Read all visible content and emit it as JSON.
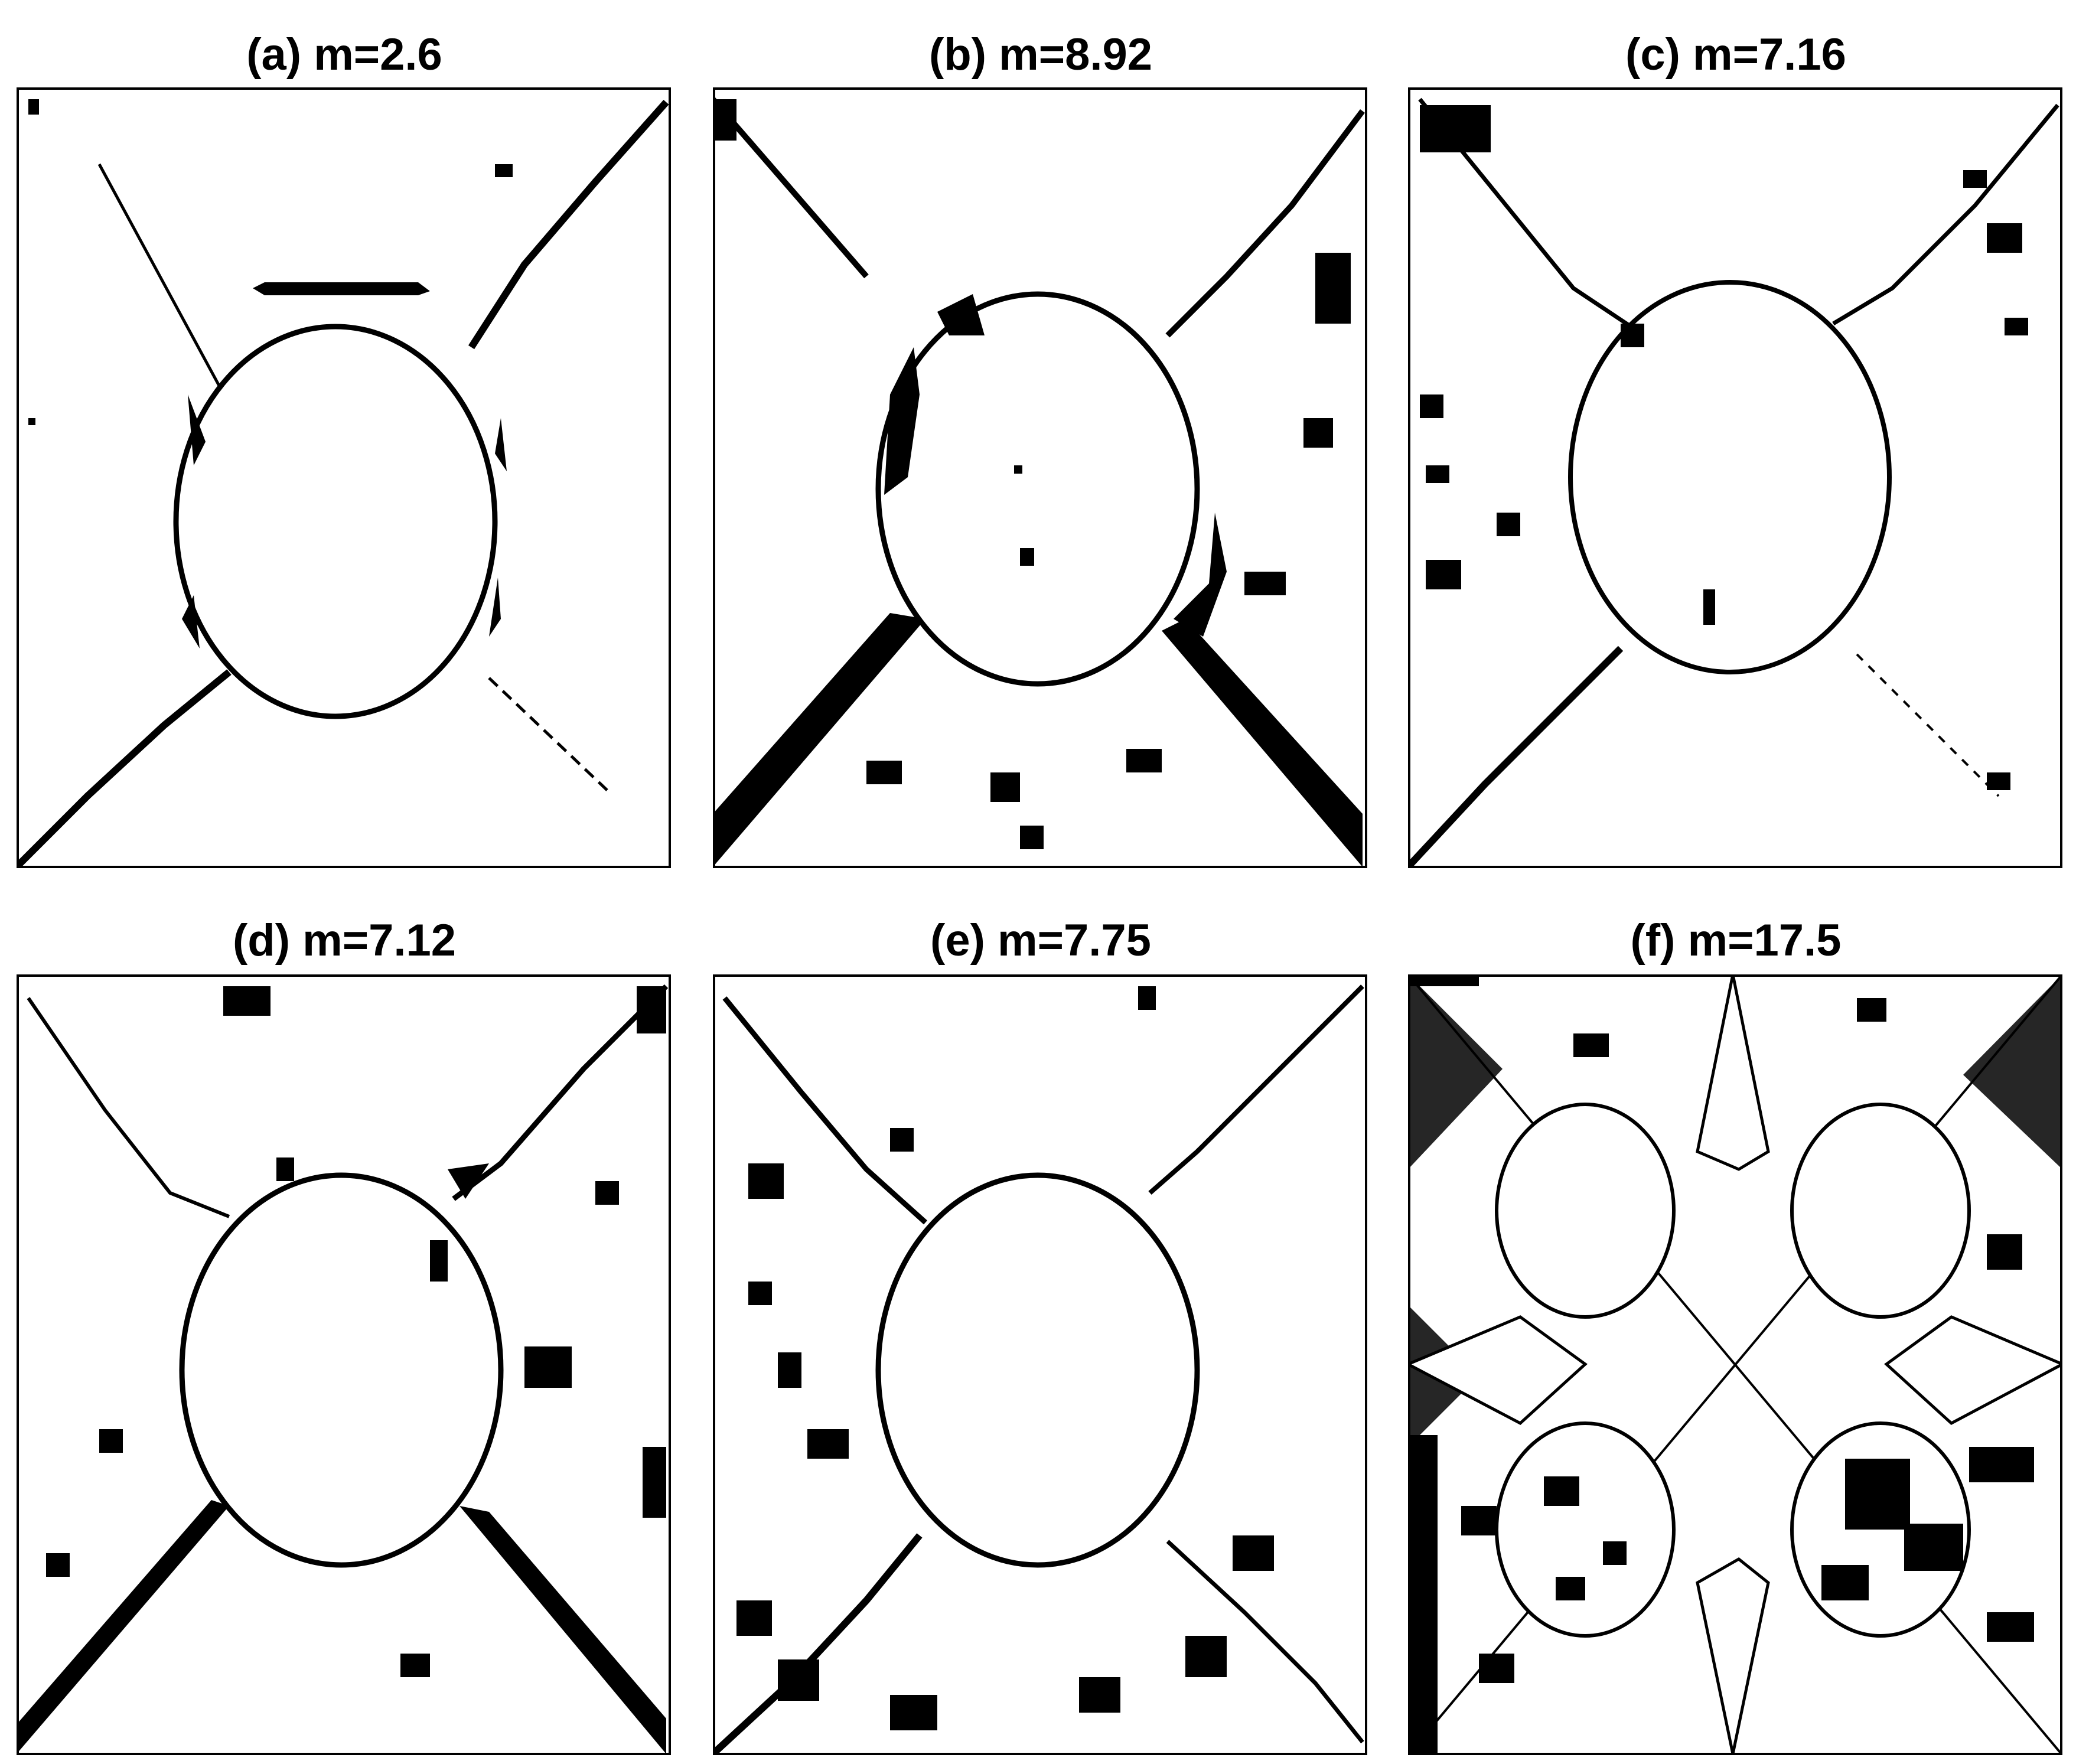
{
  "figure": {
    "panels": [
      {
        "id": "a",
        "title": "(a) m=2.6",
        "m": 2.6
      },
      {
        "id": "b",
        "title": "(b) m=8.92",
        "m": 8.92
      },
      {
        "id": "c",
        "title": "(c) m=7.16",
        "m": 7.16
      },
      {
        "id": "d",
        "title": "(d) m=7.12",
        "m": 7.12
      },
      {
        "id": "e",
        "title": "(e) m=7.75",
        "m": 7.75
      },
      {
        "id": "f",
        "title": "(f) m=17.5",
        "m": 17.5
      }
    ],
    "colors": {
      "foreground": "#000000",
      "background": "#ffffff"
    }
  }
}
